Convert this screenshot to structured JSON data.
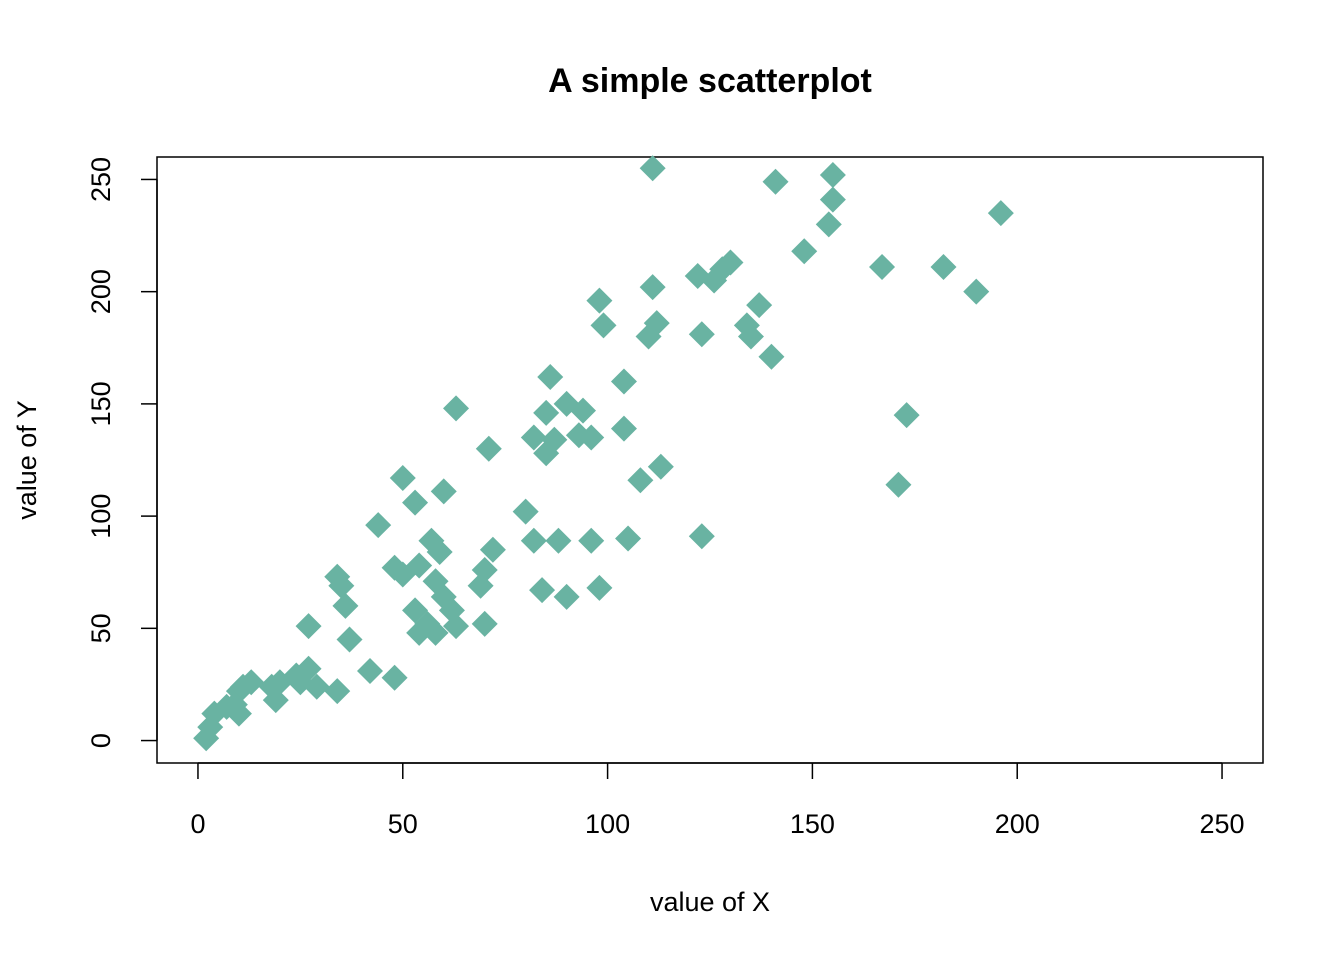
{
  "chart_data": {
    "type": "scatter",
    "title": "A simple scatterplot",
    "x_label": "value of X",
    "y_label": "value of Y",
    "color": "#69b3a2",
    "marker": "diamond",
    "xlim": [
      -10,
      260
    ],
    "ylim": [
      -10,
      260
    ],
    "xticks": [
      0,
      50,
      100,
      150,
      200,
      250
    ],
    "yticks": [
      0,
      50,
      100,
      150,
      200,
      250
    ],
    "grid": false,
    "x": [
      2,
      3,
      4,
      7,
      9,
      10,
      10,
      11,
      13,
      18,
      19,
      20,
      24,
      25,
      27,
      29,
      27,
      34,
      34,
      35,
      36,
      37,
      42,
      44,
      48,
      48,
      50,
      50,
      53,
      54,
      53,
      54,
      56,
      57,
      58,
      59,
      58,
      60,
      60,
      62,
      63,
      63,
      69,
      70,
      72,
      70,
      71,
      80,
      82,
      84,
      82,
      85,
      87,
      85,
      86,
      90,
      88,
      90,
      94,
      93,
      96,
      96,
      98,
      98,
      99,
      104,
      104,
      105,
      108,
      111,
      111,
      112,
      110,
      113,
      122,
      123,
      123,
      126,
      128,
      130,
      134,
      135,
      137,
      140,
      141,
      148,
      154,
      155,
      155,
      167,
      173,
      171,
      182,
      190,
      196
    ],
    "y": [
      1,
      6,
      12,
      15,
      16,
      12,
      22,
      24,
      26,
      24,
      18,
      26,
      29,
      26,
      32,
      24,
      51,
      22,
      73,
      69,
      60,
      45,
      31,
      96,
      28,
      77,
      74,
      117,
      106,
      78,
      58,
      48,
      52,
      89,
      48,
      84,
      71,
      111,
      64,
      58,
      51,
      148,
      69,
      76,
      85,
      52,
      130,
      102,
      89,
      67,
      135,
      128,
      134,
      146,
      162,
      150,
      89,
      64,
      147,
      136,
      135,
      89,
      68,
      196,
      185,
      160,
      139,
      90,
      116,
      255,
      202,
      186,
      180,
      122,
      207,
      181,
      91,
      205,
      210,
      213,
      185,
      180,
      194,
      171,
      249,
      218,
      230,
      241,
      252,
      211,
      145,
      114,
      211,
      200,
      235
    ]
  }
}
